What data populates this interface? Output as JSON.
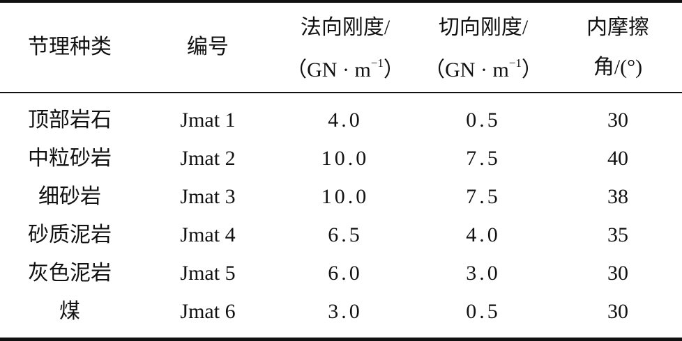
{
  "table": {
    "header": [
      {
        "line1": "节理种类"
      },
      {
        "line1": "编号"
      },
      {
        "line1": "法向刚度/",
        "unit": {
          "before": "（GN · m",
          "sup": "−1",
          "after": "）"
        }
      },
      {
        "line1": "切向刚度/",
        "unit": {
          "before": "（GN · m",
          "sup": "−1",
          "after": "）"
        }
      },
      {
        "line1": "内摩擦",
        "line2": "角/(°)"
      }
    ],
    "rows": [
      [
        "顶部岩石",
        "Jmat 1",
        "4.0",
        "0.5",
        "30"
      ],
      [
        "中粒砂岩",
        "Jmat 2",
        "10.0",
        "7.5",
        "40"
      ],
      [
        "细砂岩",
        "Jmat 3",
        "10.0",
        "7.5",
        "38"
      ],
      [
        "砂质泥岩",
        "Jmat 4",
        "6.5",
        "4.0",
        "35"
      ],
      [
        "灰色泥岩",
        "Jmat 5",
        "6.0",
        "3.0",
        "30"
      ],
      [
        "煤",
        "Jmat 6",
        "3.0",
        "0.5",
        "30"
      ]
    ]
  }
}
